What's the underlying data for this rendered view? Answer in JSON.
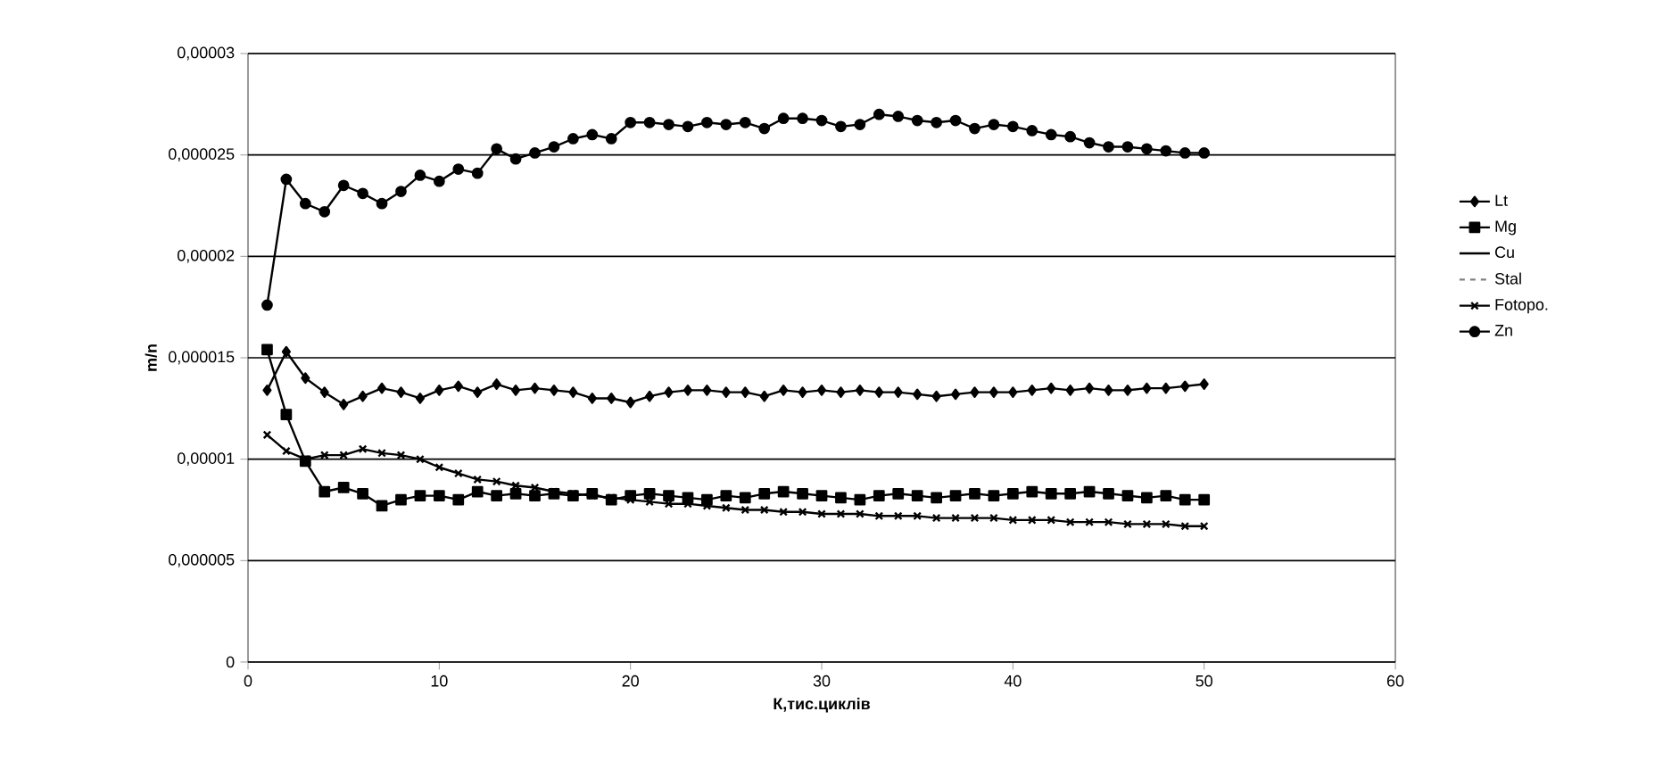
{
  "chart_data": {
    "type": "line",
    "xlabel": "К,тис.циклів",
    "ylabel": "m/n",
    "x": [
      1,
      2,
      3,
      4,
      5,
      6,
      7,
      8,
      9,
      10,
      11,
      12,
      13,
      14,
      15,
      16,
      17,
      18,
      19,
      20,
      21,
      22,
      23,
      24,
      25,
      26,
      27,
      28,
      29,
      30,
      31,
      32,
      33,
      34,
      35,
      36,
      37,
      38,
      39,
      40,
      41,
      42,
      43,
      44,
      45,
      46,
      47,
      48,
      49,
      50
    ],
    "series": [
      {
        "name": "Lt",
        "color": "#000000",
        "marker": "diamond",
        "line_style": "solid",
        "values": [
          1.34e-05,
          1.53e-05,
          1.4e-05,
          1.33e-05,
          1.27e-05,
          1.31e-05,
          1.35e-05,
          1.33e-05,
          1.3e-05,
          1.34e-05,
          1.36e-05,
          1.33e-05,
          1.37e-05,
          1.34e-05,
          1.35e-05,
          1.34e-05,
          1.33e-05,
          1.3e-05,
          1.3e-05,
          1.28e-05,
          1.31e-05,
          1.33e-05,
          1.34e-05,
          1.34e-05,
          1.33e-05,
          1.33e-05,
          1.31e-05,
          1.34e-05,
          1.33e-05,
          1.34e-05,
          1.33e-05,
          1.34e-05,
          1.33e-05,
          1.33e-05,
          1.32e-05,
          1.31e-05,
          1.32e-05,
          1.33e-05,
          1.33e-05,
          1.33e-05,
          1.34e-05,
          1.35e-05,
          1.34e-05,
          1.35e-05,
          1.34e-05,
          1.34e-05,
          1.35e-05,
          1.35e-05,
          1.36e-05,
          1.37e-05
        ]
      },
      {
        "name": "Mg",
        "color": "#000000",
        "marker": "square",
        "line_style": "solid",
        "values": [
          1.54e-05,
          1.22e-05,
          9.9e-06,
          8.4e-06,
          8.6e-06,
          8.3e-06,
          7.7e-06,
          8e-06,
          8.2e-06,
          8.2e-06,
          8e-06,
          8.4e-06,
          8.2e-06,
          8.3e-06,
          8.2e-06,
          8.3e-06,
          8.2e-06,
          8.3e-06,
          8e-06,
          8.2e-06,
          8.3e-06,
          8.2e-06,
          8.1e-06,
          8e-06,
          8.2e-06,
          8.1e-06,
          8.3e-06,
          8.4e-06,
          8.3e-06,
          8.2e-06,
          8.1e-06,
          8e-06,
          8.2e-06,
          8.3e-06,
          8.2e-06,
          8.1e-06,
          8.2e-06,
          8.3e-06,
          8.2e-06,
          8.3e-06,
          8.4e-06,
          8.3e-06,
          8.3e-06,
          8.4e-06,
          8.3e-06,
          8.2e-06,
          8.1e-06,
          8.2e-06,
          8e-06,
          8e-06
        ]
      },
      {
        "name": "Cu",
        "marker": "none",
        "line_style": "solid",
        "values": [
          null,
          null,
          null,
          null,
          null,
          null,
          null,
          null,
          null,
          null,
          null,
          null,
          null,
          null,
          null,
          null,
          null,
          null,
          null,
          null,
          null,
          null,
          null,
          null,
          null,
          null,
          null,
          null,
          null,
          null,
          null,
          null,
          null,
          null,
          null,
          null,
          null,
          null,
          null,
          null,
          null,
          null,
          null,
          null,
          null,
          null,
          null,
          null,
          null,
          null
        ]
      },
      {
        "name": "Stal",
        "color": "#808080",
        "marker": "none",
        "line_style": "dashed",
        "values": [
          null,
          null,
          null,
          null,
          null,
          null,
          null,
          null,
          null,
          null,
          null,
          null,
          null,
          null,
          null,
          null,
          null,
          null,
          null,
          null,
          null,
          null,
          null,
          null,
          null,
          null,
          null,
          null,
          null,
          null,
          null,
          null,
          null,
          null,
          null,
          null,
          null,
          null,
          null,
          null,
          null,
          null,
          null,
          null,
          null,
          null,
          null,
          null,
          null,
          null
        ]
      },
      {
        "name": "Fotopo.",
        "color": "#000000",
        "marker": "cross",
        "line_style": "solid",
        "values": [
          1.12e-05,
          1.04e-05,
          1e-05,
          1.02e-05,
          1.02e-05,
          1.05e-05,
          1.03e-05,
          1.02e-05,
          1e-05,
          9.6e-06,
          9.3e-06,
          9e-06,
          8.9e-06,
          8.7e-06,
          8.6e-06,
          8.4e-06,
          8.3e-06,
          8.2e-06,
          8.1e-06,
          8e-06,
          7.9e-06,
          7.8e-06,
          7.8e-06,
          7.7e-06,
          7.6e-06,
          7.5e-06,
          7.5e-06,
          7.4e-06,
          7.4e-06,
          7.3e-06,
          7.3e-06,
          7.3e-06,
          7.2e-06,
          7.2e-06,
          7.2e-06,
          7.1e-06,
          7.1e-06,
          7.1e-06,
          7.1e-06,
          7e-06,
          7e-06,
          7e-06,
          6.9e-06,
          6.9e-06,
          6.9e-06,
          6.8e-06,
          6.8e-06,
          6.8e-06,
          6.7e-06,
          6.7e-06
        ]
      },
      {
        "name": "Zn",
        "color": "#000000",
        "marker": "circle",
        "line_style": "solid",
        "values": [
          1.76e-05,
          2.38e-05,
          2.26e-05,
          2.22e-05,
          2.35e-05,
          2.31e-05,
          2.26e-05,
          2.32e-05,
          2.4e-05,
          2.37e-05,
          2.43e-05,
          2.41e-05,
          2.53e-05,
          2.48e-05,
          2.51e-05,
          2.54e-05,
          2.58e-05,
          2.6e-05,
          2.58e-05,
          2.66e-05,
          2.66e-05,
          2.65e-05,
          2.64e-05,
          2.66e-05,
          2.65e-05,
          2.66e-05,
          2.63e-05,
          2.68e-05,
          2.68e-05,
          2.67e-05,
          2.64e-05,
          2.65e-05,
          2.7e-05,
          2.69e-05,
          2.67e-05,
          2.66e-05,
          2.67e-05,
          2.63e-05,
          2.65e-05,
          2.64e-05,
          2.62e-05,
          2.6e-05,
          2.59e-05,
          2.56e-05,
          2.54e-05,
          2.54e-05,
          2.53e-05,
          2.52e-05,
          2.51e-05,
          2.51e-05
        ]
      }
    ],
    "xlim": [
      0,
      60
    ],
    "xticks": [
      0,
      10,
      20,
      30,
      40,
      50,
      60
    ],
    "ylim": [
      0,
      3e-05
    ],
    "yticks": [
      0,
      {
        "value": 5e-06,
        "label": "0,000005"
      },
      {
        "value": 1e-05,
        "label": "0,00001"
      },
      {
        "value": 1.5e-05,
        "label": "0,000015"
      },
      {
        "value": 2e-05,
        "label": "0,00002"
      },
      {
        "value": 2.5e-05,
        "label": "0,000025"
      },
      {
        "value": 3e-05,
        "label": "0,00003"
      }
    ],
    "grid": "y",
    "legend": "right"
  }
}
